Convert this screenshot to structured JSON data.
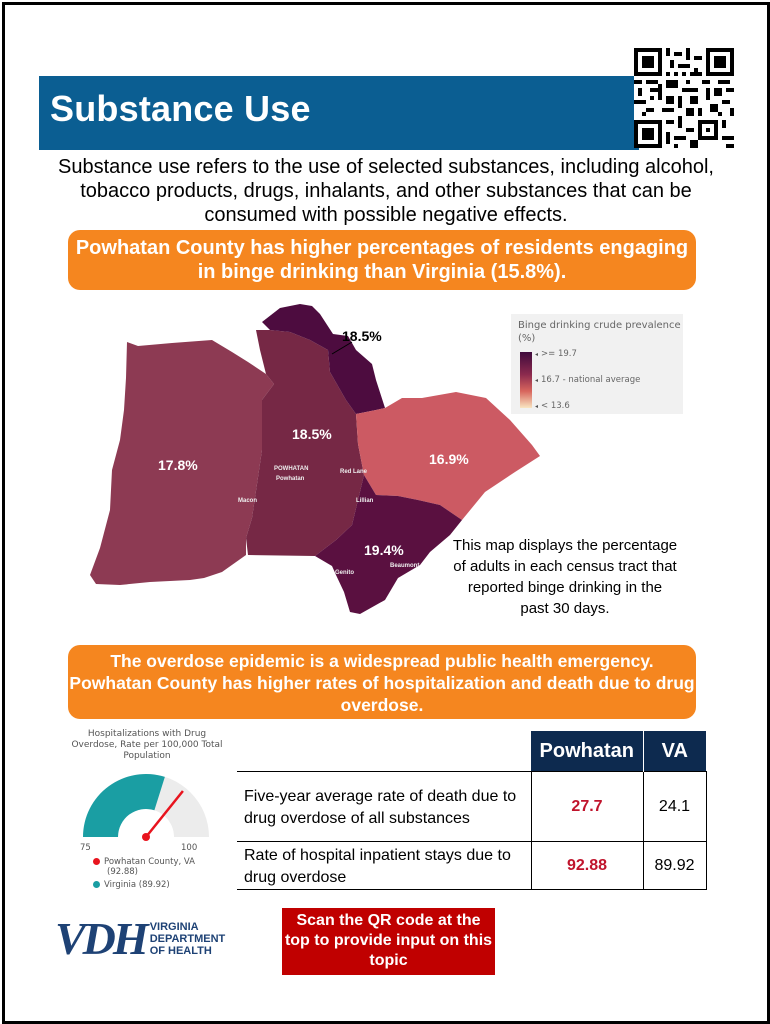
{
  "title": "Substance Use",
  "intro": "Substance use refers to the use of selected substances, including alcohol, tobacco products, drugs, inhalants, and other substances that can be consumed with possible negative effects.",
  "binge_callout": "Powhatan County has higher percentages of residents engaging in binge drinking than Virginia (15.8%).",
  "map": {
    "legend_title": "Binge drinking crude prevalence (%)",
    "legend_items": [
      ">= 19.7",
      "16.7 - national average",
      "< 13.6"
    ],
    "tract_values": [
      "18.5%",
      "18.5%",
      "17.8%",
      "16.9%",
      "19.4%"
    ],
    "place_names": [
      "POWHATAN",
      "Powhatan",
      "Red Lane",
      "Macon",
      "Lillian",
      "Genito",
      "Beaumont"
    ],
    "colors": {
      "dark": "#4d0c3f",
      "medium_dark": "#762845",
      "medium": "#8d3a53",
      "light": "#cc5a63"
    },
    "caption": "This map displays the percentage of adults in each census tract that reported binge drinking in the past 30 days."
  },
  "overdose_callout": "The overdose epidemic is a widespread public health emergency. Powhatan County has higher rates of hospitalization and death due to drug overdose.",
  "gauge": {
    "title": "Hospitalizations with Drug Overdose, Rate per 100,000 Total Population",
    "min_label": "75",
    "max_label": "100",
    "series": [
      {
        "name": "Powhatan County, VA",
        "value_label": "(92.88)",
        "value": 92.88,
        "color": "#e8141e"
      },
      {
        "name": "Virginia",
        "value_label": "(89.92)",
        "value": 89.92,
        "color": "#1a9ea3"
      }
    ]
  },
  "table": {
    "headers": [
      "Powhatan",
      "VA"
    ],
    "rows": [
      {
        "label": "Five-year average rate of death due to drug overdose of all substances",
        "powhatan": "27.7",
        "va": "24.1"
      },
      {
        "label": "Rate of hospital inpatient stays due to drug overdose",
        "powhatan": "92.88",
        "va": "89.92"
      }
    ]
  },
  "logo": {
    "letters": "VDH",
    "line1": "VIRGINIA",
    "line2": "DEPARTMENT",
    "line3": "OF HEALTH"
  },
  "scan_text": "Scan the QR code at the top to provide input on this topic"
}
